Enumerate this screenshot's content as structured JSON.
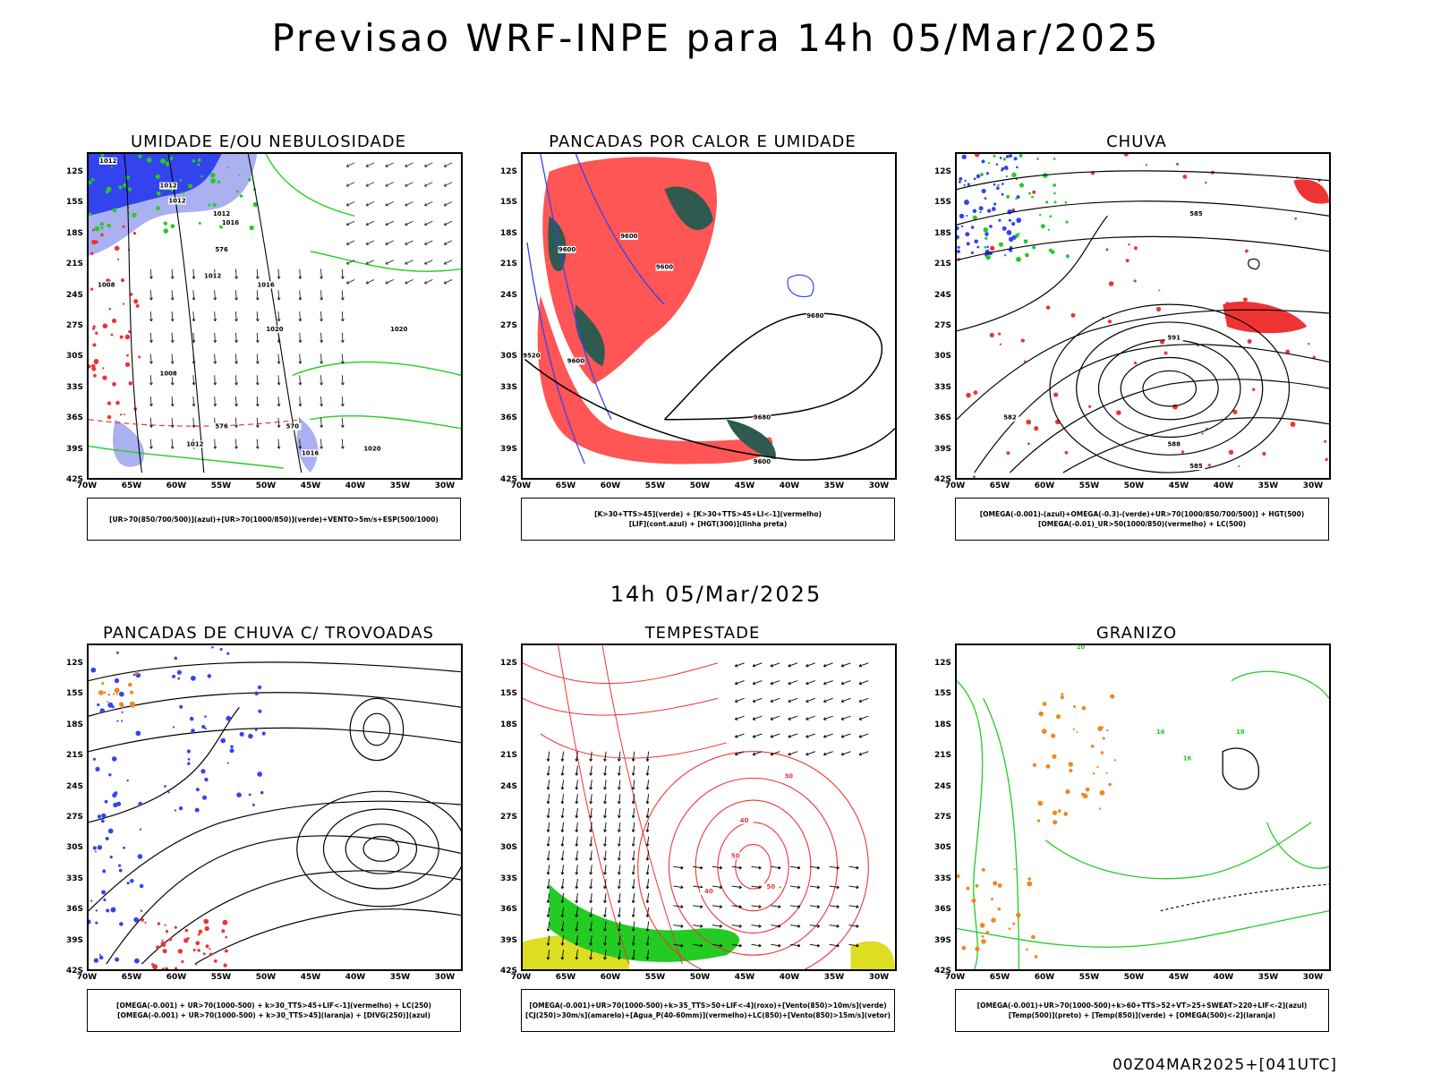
{
  "header": {
    "title": "Previsao WRF-INPE  para 14h 05/Mar/2025",
    "mid_title": "14h 05/Mar/2025",
    "footer": "00Z04MAR2025+[041UTC]"
  },
  "axes": {
    "lat_ticks": [
      "12S",
      "15S",
      "18S",
      "21S",
      "24S",
      "27S",
      "30S",
      "33S",
      "36S",
      "39S",
      "42S"
    ],
    "lon_ticks": [
      "70W",
      "65W",
      "60W",
      "55W",
      "50W",
      "45W",
      "40W",
      "35W",
      "30W"
    ]
  },
  "colors": {
    "blue": "#3344ee",
    "green": "#22cc22",
    "red": "#ee3333",
    "orange": "#ee8822",
    "darkgreen": "#2f5a4f",
    "lavender": "#aab0f0",
    "yellow": "#dddd22",
    "lightred": "#ff5555"
  },
  "panels": [
    {
      "title": "UMIDADE E/OU NEBULOSIDADE",
      "legend": [
        "[UR>70(850/700/500)](azul)+[UR>70(1000/850)](verde)+VENTO>5m/s+ESP(500/1000)"
      ],
      "contour_labels": [
        "1012",
        "1012",
        "1012",
        "1012",
        "1016",
        "1012",
        "1016",
        "1020",
        "1020",
        "1016",
        "1020",
        "1012",
        "1008",
        "1008",
        "576",
        "576",
        "570"
      ]
    },
    {
      "title": "PANCADAS POR CALOR E UMIDADE",
      "legend": [
        "[K>30+TTS>45](verde) + [K>30+TTS>45+LI<-1](vermelho)",
        "[LIF](cont.azul) + [HGT(300)](linha preta)"
      ],
      "contour_labels": [
        "9600",
        "9600",
        "9600",
        "9600",
        "9680",
        "9520",
        "9680",
        "9600"
      ]
    },
    {
      "title": "CHUVA",
      "legend": [
        "[OMEGA(-0.001)-(azul)+OMEGA(-0.3)-(verde)+UR>70(1000/850/700/500)] + HGT(500)",
        "[OMEGA(-0.01)_UR>50(1000/850)(vermelho) + LC(500)"
      ],
      "contour_labels": [
        "585",
        "591",
        "582",
        "588",
        "585"
      ]
    },
    {
      "title": "PANCADAS DE CHUVA C/ TROVOADAS",
      "legend": [
        "[OMEGA(-0.001) + UR>70(1000-500) + k>30_TTS>45+LIF<-1](vermelho) + LC(250)",
        "[OMEGA(-0.001) + UR>70(1000-500) + k>30_TTS>45](laranja) + [DIVG(250)](azul)"
      ],
      "contour_labels": []
    },
    {
      "title": "TEMPESTADE",
      "legend": [
        "[OMEGA(-0.001)+UR>70(1000-500)+k>35_TTS>50+LIF<-4](roxo)+[Vento(850)>10m/s](verde)",
        "[CJ(250)>30m/s](amarelo)+[Agua_P(40-60mm)](vermelho)+LC(850)+[Vento(850)>15m/s](vetor)"
      ],
      "contour_labels": [
        "40",
        "50",
        "50",
        "40",
        "30"
      ]
    },
    {
      "title": "GRANIZO",
      "legend": [
        "[OMEGA(-0.001)+UR>70(1000-500)+k>60+TTS>52+VT>25+SWEAT>220+LIF<-2](azul)",
        "[Temp(500)](preto) + [Temp(850)](verde) + [OMEGA(500)<-2](laranja)"
      ],
      "contour_labels": [
        "20",
        "16",
        "16",
        "18"
      ]
    }
  ]
}
